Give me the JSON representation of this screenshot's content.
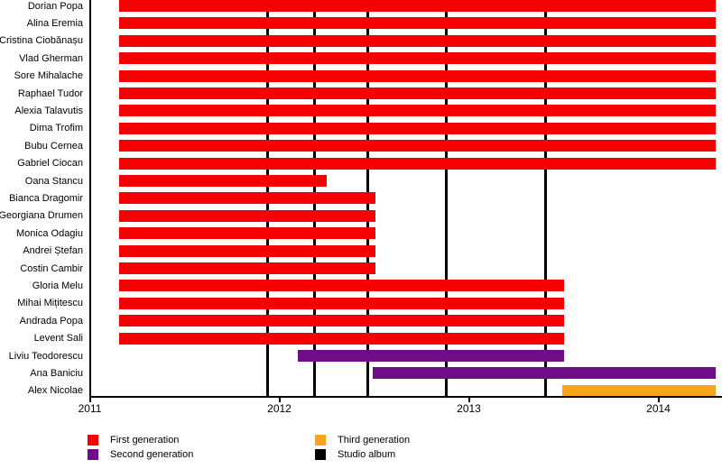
{
  "chart_data": {
    "type": "gantt",
    "title": "",
    "xlabel": "",
    "ylabel": "",
    "x_axis": {
      "range_start": 2011,
      "range_end": 2014.34,
      "ticks": [
        {
          "label": "2011",
          "year": 2011
        },
        {
          "label": "2012",
          "year": 2012
        },
        {
          "label": "2013",
          "year": 2013
        },
        {
          "label": "2014",
          "year": 2014
        }
      ]
    },
    "members": [
      {
        "name": "Dorian Popa",
        "generation": "first",
        "start": 2011.157,
        "end": 2014.303
      },
      {
        "name": "Alina Eremia",
        "generation": "first",
        "start": 2011.157,
        "end": 2014.303
      },
      {
        "name": "Cristina Ciobănașu",
        "generation": "first",
        "start": 2011.157,
        "end": 2014.303
      },
      {
        "name": "Vlad Gherman",
        "generation": "first",
        "start": 2011.157,
        "end": 2014.303
      },
      {
        "name": "Sore Mihalache",
        "generation": "first",
        "start": 2011.157,
        "end": 2014.303
      },
      {
        "name": "Raphael Tudor",
        "generation": "first",
        "start": 2011.157,
        "end": 2014.303
      },
      {
        "name": "Alexia Talavutis",
        "generation": "first",
        "start": 2011.157,
        "end": 2014.303
      },
      {
        "name": "Dima Trofim",
        "generation": "first",
        "start": 2011.157,
        "end": 2014.303
      },
      {
        "name": "Bubu Cernea",
        "generation": "first",
        "start": 2011.157,
        "end": 2014.303
      },
      {
        "name": "Gabriel Ciocan",
        "generation": "first",
        "start": 2011.157,
        "end": 2014.303
      },
      {
        "name": "Oana Stancu",
        "generation": "first",
        "start": 2011.157,
        "end": 2012.252
      },
      {
        "name": "Bianca Dragomir",
        "generation": "first",
        "start": 2011.157,
        "end": 2012.505
      },
      {
        "name": "Georgiana Drumen",
        "generation": "first",
        "start": 2011.157,
        "end": 2012.505
      },
      {
        "name": "Monica Odagiu",
        "generation": "first",
        "start": 2011.157,
        "end": 2012.505
      },
      {
        "name": "Andrei Ștefan",
        "generation": "first",
        "start": 2011.157,
        "end": 2012.505
      },
      {
        "name": "Costin Cambir",
        "generation": "first",
        "start": 2011.157,
        "end": 2012.505
      },
      {
        "name": "Gloria Melu",
        "generation": "first",
        "start": 2011.157,
        "end": 2013.502
      },
      {
        "name": "Mihai Mițitescu",
        "generation": "first",
        "start": 2011.157,
        "end": 2013.502
      },
      {
        "name": "Andrada Popa",
        "generation": "first",
        "start": 2011.157,
        "end": 2013.502
      },
      {
        "name": "Levent Sali",
        "generation": "first",
        "start": 2011.157,
        "end": 2013.502
      },
      {
        "name": "Liviu Teodorescu",
        "generation": "second",
        "start": 2012.098,
        "end": 2013.502
      },
      {
        "name": "Ana Baniciu",
        "generation": "second",
        "start": 2012.494,
        "end": 2014.303
      },
      {
        "name": "Alex Nicolae",
        "generation": "third",
        "start": 2013.493,
        "end": 2014.303
      }
    ],
    "studio_albums": [
      2011.936,
      2012.186,
      2012.469,
      2012.883,
      2013.407
    ],
    "legend": [
      {
        "label": "First generation",
        "key": "first",
        "color": "#f40000"
      },
      {
        "label": "Second generation",
        "key": "second",
        "color": "#6f0c87"
      },
      {
        "label": "Third generation",
        "key": "third",
        "color": "#faa41e"
      },
      {
        "label": "Studio album",
        "key": "album",
        "color": "#000000"
      }
    ],
    "colors": {
      "first": "#f40000",
      "second": "#6f0c87",
      "third": "#faa41e",
      "album": "#000000",
      "axis": "#000000"
    }
  }
}
